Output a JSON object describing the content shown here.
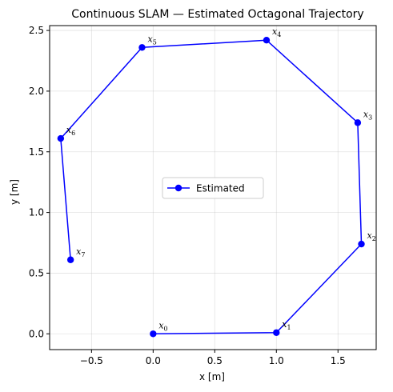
{
  "chart_data": {
    "type": "line",
    "title": "Continuous SLAM — Estimated Octagonal Trajectory",
    "xlabel": "x [m]",
    "ylabel": "y [m]",
    "xlim": [
      -0.84,
      1.81
    ],
    "ylim": [
      -0.13,
      2.54
    ],
    "xticks": [
      -0.5,
      0.0,
      0.5,
      1.0,
      1.5
    ],
    "xtick_labels": [
      "−0.5",
      "0.0",
      "0.5",
      "1.0",
      "1.5"
    ],
    "yticks": [
      0.0,
      0.5,
      1.0,
      1.5,
      2.0,
      2.5
    ],
    "ytick_labels": [
      "0.0",
      "0.5",
      "1.0",
      "1.5",
      "2.0",
      "2.5"
    ],
    "grid": true,
    "legend": {
      "position": "center",
      "entries": [
        "Estimated"
      ]
    },
    "series": [
      {
        "name": "Estimated",
        "color": "#0000ff",
        "marker": "circle",
        "points": [
          {
            "label": "x",
            "sub": "0",
            "x": 0.0,
            "y": 0.0
          },
          {
            "label": "x",
            "sub": "1",
            "x": 1.0,
            "y": 0.01
          },
          {
            "label": "x",
            "sub": "2",
            "x": 1.69,
            "y": 0.74
          },
          {
            "label": "x",
            "sub": "3",
            "x": 1.66,
            "y": 1.74
          },
          {
            "label": "x",
            "sub": "4",
            "x": 0.92,
            "y": 2.42
          },
          {
            "label": "x",
            "sub": "5",
            "x": -0.09,
            "y": 2.36
          },
          {
            "label": "x",
            "sub": "6",
            "x": -0.75,
            "y": 1.61
          },
          {
            "label": "x",
            "sub": "7",
            "x": -0.67,
            "y": 0.61
          }
        ]
      }
    ]
  }
}
